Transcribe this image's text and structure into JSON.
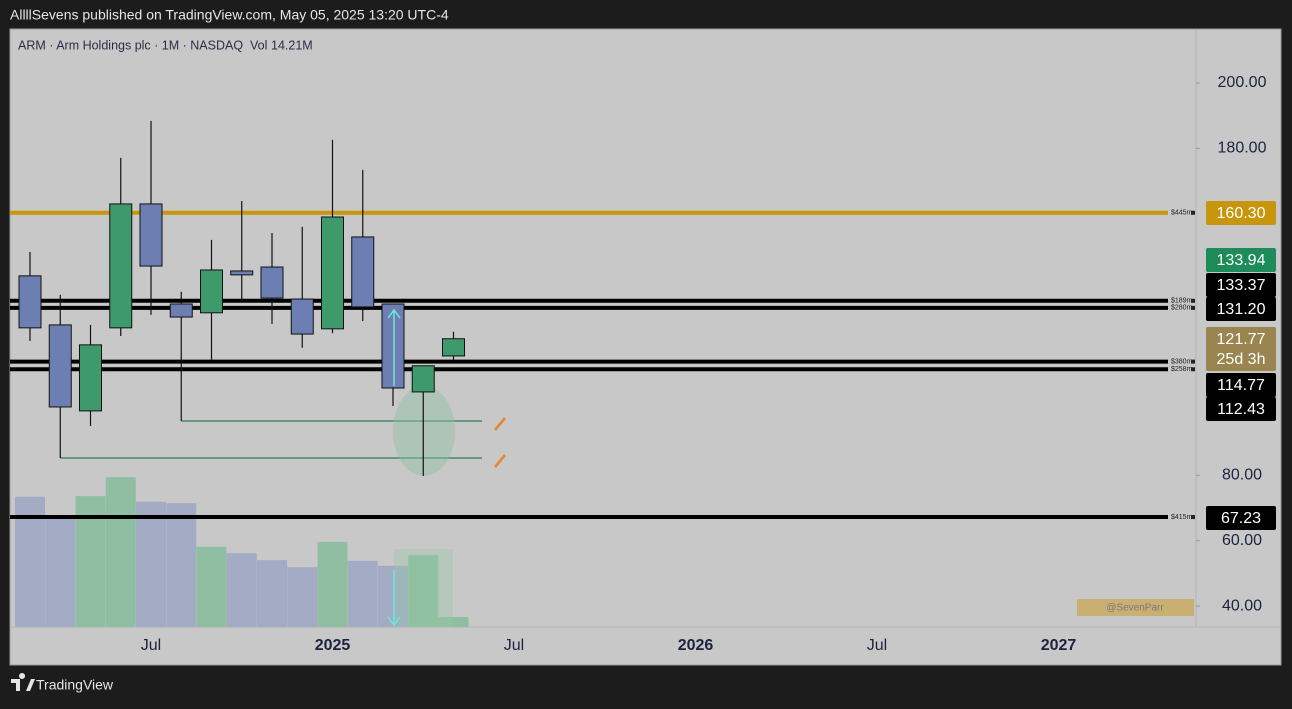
{
  "header": {
    "published": "AllllSevens published on TradingView.com, May 05, 2025 13:20 UTC-4",
    "brand": "TradingView"
  },
  "chart_data": {
    "type": "candlestick",
    "legend": "ARM · Arm Holdings plc · 1M · NASDAQ",
    "volume_title": "Vol",
    "categories": [
      null,
      null,
      null,
      null,
      "Jul",
      null,
      null,
      null,
      null,
      null,
      "2025",
      null,
      null,
      null,
      null,
      null,
      "Jul",
      null,
      null,
      null,
      null,
      null,
      "2026",
      null,
      null,
      null,
      null,
      null,
      "Jul",
      null,
      null,
      null,
      null,
      null,
      "2027"
    ],
    "open": [
      141.0,
      126.0,
      99.7,
      125.1,
      163.0,
      132.4,
      129.7,
      142.5,
      143.7,
      133.9,
      124.8,
      152.9,
      132.4,
      105.5,
      116.5,
      null,
      null,
      null,
      null,
      null,
      null,
      null,
      null,
      null,
      null,
      null,
      null,
      null,
      null,
      null,
      null,
      null,
      null,
      null,
      null
    ],
    "high": [
      148.3,
      135.2,
      126.0,
      177.1,
      188.4,
      136.1,
      152.0,
      163.9,
      154.1,
      156.0,
      182.6,
      173.4,
      132.4,
      113.5,
      123.9,
      null,
      null,
      null,
      null,
      null,
      null,
      null,
      null,
      null,
      null,
      null,
      null,
      null,
      null,
      null,
      null,
      null,
      null,
      null,
      null
    ],
    "low": [
      121.1,
      85.3,
      95.1,
      122.6,
      129.1,
      96.6,
      115.3,
      133.3,
      126.3,
      119.0,
      123.5,
      127.2,
      101.2,
      79.8,
      115.0,
      null,
      null,
      null,
      null,
      null,
      null,
      null,
      null,
      null,
      null,
      null,
      null,
      null,
      null,
      null,
      null,
      null,
      null,
      null,
      null
    ],
    "close": [
      125.1,
      100.9,
      119.9,
      163.0,
      144.0,
      128.4,
      142.8,
      141.3,
      134.2,
      123.2,
      159.0,
      131.5,
      106.7,
      113.5,
      121.77,
      null,
      null,
      null,
      null,
      null,
      null,
      null,
      null,
      null,
      null,
      null,
      null,
      null,
      null,
      null,
      null,
      null,
      null,
      null,
      null
    ],
    "volume": [
      185,
      159,
      186,
      213,
      178,
      176,
      114,
      105,
      95,
      85,
      121,
      94,
      87,
      102,
      14.21,
      null,
      null,
      null,
      null,
      null,
      null,
      null,
      null,
      null,
      null,
      null,
      null,
      null,
      null,
      null,
      null,
      null,
      null,
      null,
      null
    ],
    "volume_value_labels": [
      null,
      null,
      null,
      null,
      null,
      null,
      null,
      null,
      null,
      null,
      null,
      null,
      null,
      null,
      "14.21M",
      null,
      null,
      null,
      null,
      null,
      null,
      null,
      null,
      null,
      null,
      null,
      null,
      null,
      null,
      null,
      null,
      null,
      null,
      null,
      null
    ],
    "up_color": "#3f9a6b",
    "down_color": "#6d7fb2",
    "up_volume_color": "#8fbea2",
    "down_volume_color": "#a4acc5",
    "ylim": [
      33.6,
      216.2
    ],
    "yticks": [
      {
        "value": 40,
        "label": "40.00"
      },
      {
        "value": 60,
        "label": "60.00"
      },
      {
        "value": 80,
        "label": "80.00"
      },
      {
        "value": 180,
        "label": "180.00"
      },
      {
        "value": 200,
        "label": "200.00"
      }
    ],
    "levels": [
      {
        "value": 160.3,
        "label": "160.30",
        "note": "$445m",
        "color": "#c8960c"
      },
      {
        "value": 133.37,
        "label": "133.37",
        "note": "$189m",
        "color": "#000000"
      },
      {
        "value": 131.2,
        "label": "131.20",
        "note": "$280m",
        "color": "#000000"
      },
      {
        "value": 114.77,
        "label": "114.77",
        "note": "$380m",
        "color": "#000000"
      },
      {
        "value": 112.43,
        "label": "112.43",
        "note": "$258m",
        "color": "#000000"
      },
      {
        "value": 67.23,
        "label": "67.23",
        "note": "$415m",
        "color": "#000000"
      }
    ],
    "support_lines": [
      {
        "value": 96.6,
        "from": 5
      },
      {
        "value": 85.3,
        "from": 1
      }
    ],
    "support_color": "#2f7d4f",
    "marker_price": {
      "value": 133.94,
      "label": "133.94",
      "color": "#1e8c5a"
    },
    "last_price": {
      "label": "121.77",
      "countdown": "25d 3h",
      "color": "#9a8450"
    },
    "watermark": "@SevenParr"
  }
}
